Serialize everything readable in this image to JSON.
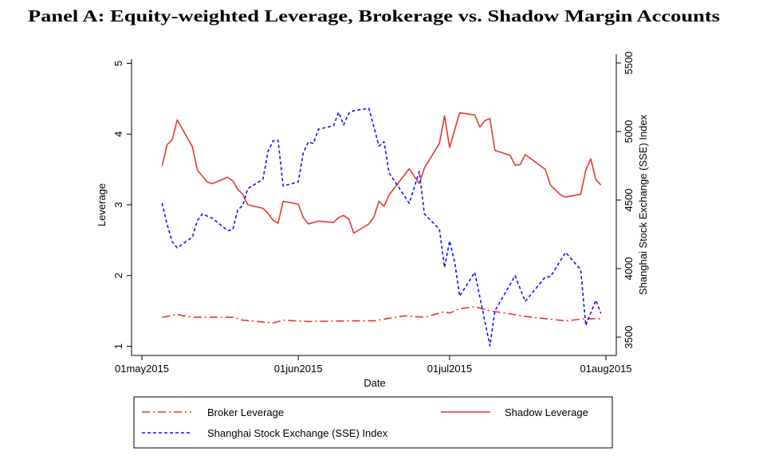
{
  "chart_data": {
    "type": "line",
    "title": "Panel A: Equity-weighted Leverage, Brokerage vs. Shadow Margin Accounts",
    "xlabel": "Date",
    "ylabel": "Leverage",
    "y2label": "Shanghai Stock Exchange (SSE) Index",
    "xlim": [
      "2015-05-01",
      "2015-08-01"
    ],
    "ylim": [
      1,
      5
    ],
    "y2lim": [
      3500,
      5500
    ],
    "x_ticks": [
      {
        "date": "2015-05-01",
        "label": "01may2015"
      },
      {
        "date": "2015-06-01",
        "label": "01jun2015"
      },
      {
        "date": "2015-07-01",
        "label": "01jul2015"
      },
      {
        "date": "2015-08-01",
        "label": "01aug2015"
      }
    ],
    "y_ticks": [
      "1",
      "2",
      "3",
      "4",
      "5"
    ],
    "y2_ticks": [
      "3500",
      "4000",
      "4500",
      "5000",
      "5500"
    ],
    "grid": false,
    "legend_position": "bottom",
    "colors": {
      "broker": "#e8372c",
      "shadow": "#e8372c",
      "sse": "#1010ff"
    },
    "series": [
      {
        "name": "Broker Leverage",
        "axis": "left",
        "style": "dash-dot",
        "x": [
          "2015-05-05",
          "2015-05-08",
          "2015-05-11",
          "2015-05-13",
          "2015-05-19",
          "2015-05-21",
          "2015-05-27",
          "2015-05-29",
          "2015-06-03",
          "2015-06-11",
          "2015-06-16",
          "2015-06-22",
          "2015-06-26",
          "2015-06-30",
          "2015-07-01",
          "2015-07-03",
          "2015-07-06",
          "2015-07-09",
          "2015-07-13",
          "2015-07-15",
          "2015-07-20",
          "2015-07-24",
          "2015-07-28",
          "2015-07-31"
        ],
        "values": [
          1.41,
          1.45,
          1.41,
          1.41,
          1.41,
          1.37,
          1.33,
          1.37,
          1.35,
          1.36,
          1.36,
          1.43,
          1.41,
          1.49,
          1.47,
          1.53,
          1.56,
          1.5,
          1.46,
          1.43,
          1.39,
          1.36,
          1.39,
          1.39
        ]
      },
      {
        "name": "Shadow Leverage",
        "axis": "left",
        "style": "solid",
        "x": [
          "2015-05-05",
          "2015-05-06",
          "2015-05-07",
          "2015-05-08",
          "2015-05-11",
          "2015-05-12",
          "2015-05-14",
          "2015-05-15",
          "2015-05-18",
          "2015-05-19",
          "2015-05-20",
          "2015-05-21",
          "2015-05-22",
          "2015-05-25",
          "2015-05-26",
          "2015-05-27",
          "2015-05-28",
          "2015-05-29",
          "2015-06-01",
          "2015-06-02",
          "2015-06-03",
          "2015-06-05",
          "2015-06-08",
          "2015-06-09",
          "2015-06-10",
          "2015-06-11",
          "2015-06-12",
          "2015-06-15",
          "2015-06-16",
          "2015-06-17",
          "2015-06-18",
          "2015-06-19",
          "2015-06-23",
          "2015-06-25",
          "2015-06-26",
          "2015-06-29",
          "2015-06-30",
          "2015-07-01",
          "2015-07-03",
          "2015-07-06",
          "2015-07-07",
          "2015-07-08",
          "2015-07-09",
          "2015-07-10",
          "2015-07-13",
          "2015-07-14",
          "2015-07-15",
          "2015-07-16",
          "2015-07-20",
          "2015-07-21",
          "2015-07-23",
          "2015-07-24",
          "2015-07-27",
          "2015-07-28",
          "2015-07-29",
          "2015-07-30",
          "2015-07-31"
        ],
        "values": [
          3.55,
          3.85,
          3.92,
          4.2,
          3.82,
          3.49,
          3.32,
          3.3,
          3.39,
          3.34,
          3.22,
          3.15,
          3.0,
          2.95,
          2.88,
          2.78,
          2.74,
          3.05,
          3.01,
          2.82,
          2.73,
          2.77,
          2.75,
          2.82,
          2.85,
          2.8,
          2.6,
          2.73,
          2.83,
          3.05,
          2.98,
          3.14,
          3.51,
          3.3,
          3.52,
          3.87,
          4.26,
          3.81,
          4.3,
          4.27,
          4.1,
          4.19,
          4.22,
          3.77,
          3.7,
          3.56,
          3.57,
          3.71,
          3.5,
          3.28,
          3.14,
          3.11,
          3.15,
          3.49,
          3.65,
          3.36,
          3.28
        ]
      },
      {
        "name": "Shanghai Stock Exchange (SSE) Index",
        "axis": "right",
        "style": "dashed",
        "x": [
          "2015-05-05",
          "2015-05-06",
          "2015-05-07",
          "2015-05-08",
          "2015-05-11",
          "2015-05-12",
          "2015-05-13",
          "2015-05-15",
          "2015-05-18",
          "2015-05-19",
          "2015-05-20",
          "2015-05-21",
          "2015-05-22",
          "2015-05-25",
          "2015-05-26",
          "2015-05-27",
          "2015-05-28",
          "2015-05-29",
          "2015-06-01",
          "2015-06-02",
          "2015-06-03",
          "2015-06-04",
          "2015-06-05",
          "2015-06-08",
          "2015-06-09",
          "2015-06-10",
          "2015-06-11",
          "2015-06-12",
          "2015-06-15",
          "2015-06-17",
          "2015-06-18",
          "2015-06-19",
          "2015-06-23",
          "2015-06-25",
          "2015-06-26",
          "2015-06-29",
          "2015-06-30",
          "2015-07-01",
          "2015-07-02",
          "2015-07-03",
          "2015-07-06",
          "2015-07-09",
          "2015-07-10",
          "2015-07-14",
          "2015-07-16",
          "2015-07-20",
          "2015-07-21",
          "2015-07-24",
          "2015-07-27",
          "2015-07-28",
          "2015-07-30",
          "2015-07-31"
        ],
        "values": [
          4477,
          4322,
          4196,
          4151,
          4229,
          4351,
          4399,
          4366,
          4277,
          4283,
          4428,
          4461,
          4583,
          4651,
          4855,
          4932,
          4936,
          4603,
          4632,
          4845,
          4923,
          4913,
          5016,
          5043,
          5140,
          5048,
          5132,
          5151,
          5170,
          4894,
          4926,
          4699,
          4477,
          4709,
          4399,
          4287,
          4008,
          4202,
          4051,
          3798,
          3973,
          3436,
          3692,
          3948,
          3760,
          3940,
          3940,
          4118,
          3992,
          3585,
          3769,
          3673
        ]
      }
    ]
  }
}
